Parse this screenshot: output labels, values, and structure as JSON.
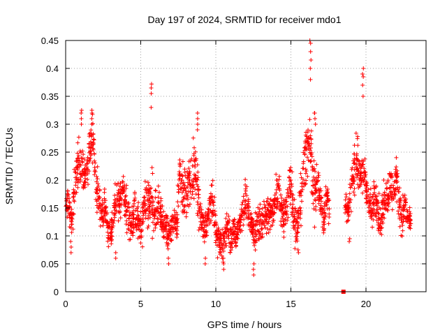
{
  "chart_data": {
    "type": "scatter",
    "title": "Day 197 of 2024, SRMTID for receiver mdo1",
    "xlabel": "GPS time / hours",
    "ylabel": "SRMTID / TECUs",
    "xlim": [
      0,
      24
    ],
    "ylim": [
      0,
      0.45
    ],
    "xticks": [
      0,
      5,
      10,
      15,
      20
    ],
    "xtick_labels": [
      "0",
      "5",
      "10",
      "15",
      "20"
    ],
    "yticks": [
      0,
      0.05,
      0.1,
      0.15,
      0.2,
      0.25,
      0.3,
      0.35,
      0.4,
      0.45
    ],
    "ytick_labels": [
      "0",
      "0.05",
      "0.1",
      "0.15",
      "0.2",
      "0.25",
      "0.3",
      "0.35",
      "0.4",
      "0.45"
    ],
    "grid": true,
    "marker": "+",
    "series_color": "#ff0000",
    "zero_marker": {
      "x": 18.5,
      "y": 0
    },
    "data_gap": [
      17.6,
      18.4
    ],
    "series": [
      {
        "name": "SRMTID",
        "x": [
          0.0,
          0.2,
          0.4,
          0.6,
          0.8,
          1.0,
          1.2,
          1.4,
          1.6,
          1.8,
          2.0,
          2.2,
          2.4,
          2.6,
          2.8,
          3.0,
          3.2,
          3.4,
          3.6,
          3.8,
          4.0,
          4.2,
          4.4,
          4.6,
          4.8,
          5.0,
          5.2,
          5.4,
          5.6,
          5.8,
          6.0,
          6.2,
          6.4,
          6.6,
          6.8,
          7.0,
          7.2,
          7.4,
          7.6,
          7.8,
          8.0,
          8.2,
          8.4,
          8.6,
          8.8,
          9.0,
          9.2,
          9.4,
          9.6,
          9.8,
          10.0,
          10.2,
          10.4,
          10.6,
          10.8,
          11.0,
          11.2,
          11.4,
          11.6,
          11.8,
          12.0,
          12.2,
          12.4,
          12.6,
          12.8,
          13.0,
          13.2,
          13.4,
          13.6,
          13.8,
          14.0,
          14.2,
          14.4,
          14.6,
          14.8,
          15.0,
          15.2,
          15.4,
          15.6,
          15.8,
          16.0,
          16.2,
          16.4,
          16.6,
          16.8,
          17.0,
          17.2,
          17.4,
          18.6,
          18.8,
          19.0,
          19.2,
          19.4,
          19.6,
          19.8,
          20.0,
          20.2,
          20.4,
          20.6,
          20.8,
          21.0,
          21.2,
          21.4,
          21.6,
          21.8,
          22.0,
          22.2,
          22.4,
          22.6,
          22.8
        ],
        "center": [
          0.15,
          0.17,
          0.12,
          0.19,
          0.22,
          0.23,
          0.21,
          0.22,
          0.25,
          0.28,
          0.19,
          0.17,
          0.13,
          0.16,
          0.11,
          0.1,
          0.14,
          0.18,
          0.16,
          0.19,
          0.15,
          0.13,
          0.12,
          0.15,
          0.13,
          0.11,
          0.15,
          0.17,
          0.16,
          0.15,
          0.14,
          0.16,
          0.13,
          0.12,
          0.1,
          0.11,
          0.13,
          0.12,
          0.22,
          0.18,
          0.17,
          0.19,
          0.21,
          0.22,
          0.17,
          0.13,
          0.11,
          0.12,
          0.15,
          0.16,
          0.11,
          0.09,
          0.08,
          0.1,
          0.12,
          0.09,
          0.11,
          0.1,
          0.13,
          0.15,
          0.16,
          0.14,
          0.12,
          0.1,
          0.13,
          0.12,
          0.14,
          0.13,
          0.15,
          0.14,
          0.17,
          0.18,
          0.14,
          0.13,
          0.17,
          0.2,
          0.14,
          0.1,
          0.16,
          0.2,
          0.25,
          0.27,
          0.22,
          0.18,
          0.19,
          0.16,
          0.13,
          0.17,
          0.16,
          0.14,
          0.18,
          0.22,
          0.24,
          0.21,
          0.21,
          0.19,
          0.16,
          0.14,
          0.17,
          0.15,
          0.13,
          0.16,
          0.17,
          0.19,
          0.18,
          0.2,
          0.16,
          0.14,
          0.15,
          0.13
        ],
        "spread": [
          0.03,
          0.05,
          0.05,
          0.05,
          0.08,
          0.05,
          0.04,
          0.05,
          0.06,
          0.05,
          0.06,
          0.05,
          0.05,
          0.05,
          0.04,
          0.04,
          0.05,
          0.06,
          0.06,
          0.05,
          0.06,
          0.05,
          0.05,
          0.05,
          0.05,
          0.06,
          0.06,
          0.08,
          0.08,
          0.06,
          0.06,
          0.05,
          0.05,
          0.05,
          0.04,
          0.04,
          0.05,
          0.05,
          0.06,
          0.06,
          0.05,
          0.06,
          0.08,
          0.07,
          0.06,
          0.05,
          0.04,
          0.04,
          0.05,
          0.05,
          0.05,
          0.04,
          0.04,
          0.04,
          0.04,
          0.04,
          0.04,
          0.04,
          0.04,
          0.05,
          0.04,
          0.04,
          0.04,
          0.05,
          0.05,
          0.04,
          0.04,
          0.05,
          0.05,
          0.05,
          0.06,
          0.06,
          0.06,
          0.05,
          0.06,
          0.06,
          0.06,
          0.05,
          0.07,
          0.08,
          0.08,
          0.1,
          0.08,
          0.06,
          0.05,
          0.05,
          0.05,
          0.05,
          0.04,
          0.04,
          0.05,
          0.07,
          0.06,
          0.06,
          0.06,
          0.05,
          0.05,
          0.05,
          0.05,
          0.06,
          0.05,
          0.05,
          0.05,
          0.05,
          0.05,
          0.06,
          0.05,
          0.05,
          0.04,
          0.04
        ]
      }
    ],
    "peaks": [
      {
        "x": 1.05,
        "values": [
          0.3,
          0.31,
          0.32,
          0.325
        ]
      },
      {
        "x": 1.75,
        "values": [
          0.3,
          0.31,
          0.32,
          0.325
        ]
      },
      {
        "x": 5.7,
        "values": [
          0.33,
          0.355,
          0.365,
          0.372
        ]
      },
      {
        "x": 8.75,
        "values": [
          0.29,
          0.3,
          0.31,
          0.32
        ]
      },
      {
        "x": 16.3,
        "values": [
          0.38,
          0.4,
          0.415,
          0.43,
          0.445,
          0.45
        ]
      },
      {
        "x": 16.6,
        "values": [
          0.3,
          0.31,
          0.32,
          0.32
        ]
      },
      {
        "x": 19.8,
        "values": [
          0.35,
          0.37,
          0.385,
          0.39,
          0.4
        ]
      }
    ],
    "lows": [
      {
        "x": 0.35,
        "values": [
          0.07,
          0.08,
          0.09
        ]
      },
      {
        "x": 3.3,
        "values": [
          0.06,
          0.07
        ]
      },
      {
        "x": 6.85,
        "values": [
          0.05,
          0.06
        ]
      },
      {
        "x": 9.3,
        "values": [
          0.05,
          0.06
        ]
      },
      {
        "x": 10.5,
        "values": [
          0.05,
          0.04,
          0.06
        ]
      },
      {
        "x": 12.5,
        "values": [
          0.03,
          0.04,
          0.05
        ]
      },
      {
        "x": 15.5,
        "values": [
          0.07,
          0.075
        ]
      },
      {
        "x": 18.9,
        "values": [
          0.09,
          0.095
        ]
      }
    ]
  }
}
